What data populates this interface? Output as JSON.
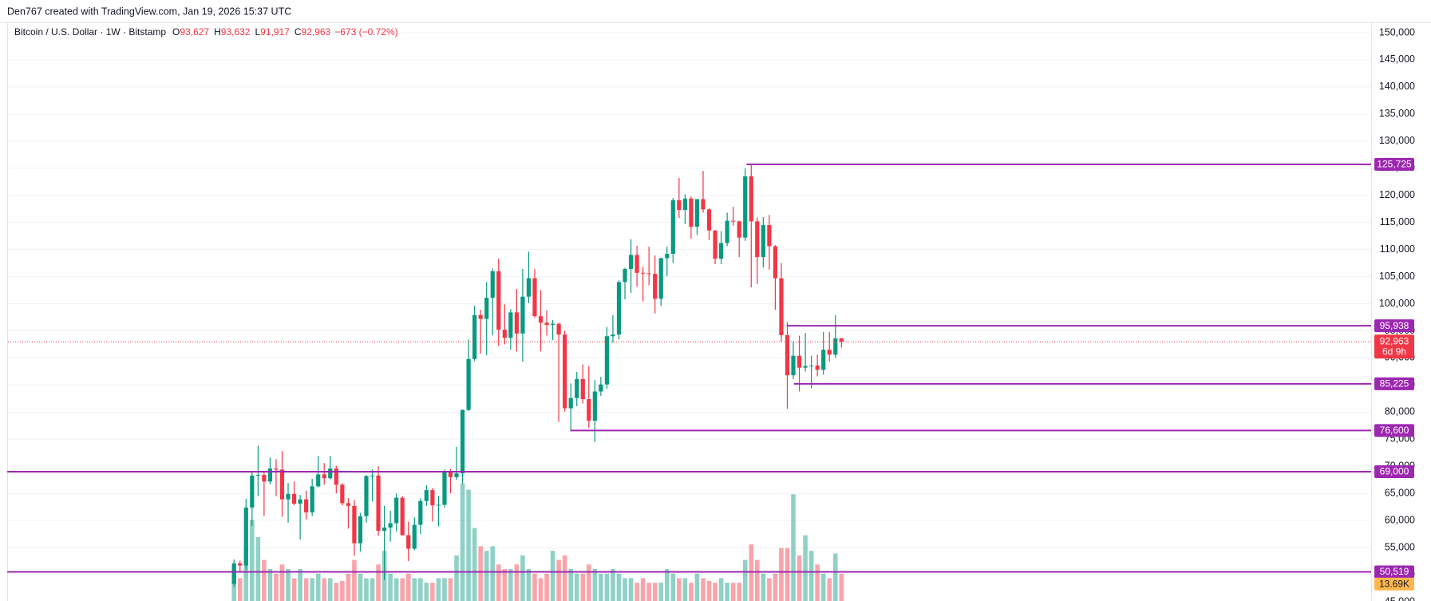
{
  "header": "Den767 created with TradingView.com, Jan 19, 2026 15:37 UTC",
  "chart_data": {
    "type": "candlestick",
    "symbol": "Bitcoin / U.S. Dollar · 1W · Bitstamp",
    "ohlc_legend": [
      {
        "key": "O",
        "value": "93,627"
      },
      {
        "key": "H",
        "value": "93,632"
      },
      {
        "key": "L",
        "value": "91,917"
      },
      {
        "key": "C",
        "value": "92,963"
      }
    ],
    "change": "−673 (−0.72%)",
    "up_color": "#089981",
    "down_color": "#f23645",
    "level_color": "#9c27b0",
    "ylim": [
      45000,
      150000
    ],
    "yticks": [
      {
        "value": 150000,
        "label": "150,000"
      },
      {
        "value": 145000,
        "label": "145,000"
      },
      {
        "value": 140000,
        "label": "140,000"
      },
      {
        "value": 135000,
        "label": "135,000"
      },
      {
        "value": 130000,
        "label": "130,000"
      },
      {
        "value": 125000,
        "label": "125,000"
      },
      {
        "value": 120000,
        "label": "120,000"
      },
      {
        "value": 115000,
        "label": "115,000"
      },
      {
        "value": 110000,
        "label": "110,000"
      },
      {
        "value": 105000,
        "label": "105,000"
      },
      {
        "value": 100000,
        "label": "100,000"
      },
      {
        "value": 95000,
        "label": "95,000"
      },
      {
        "value": 90000,
        "label": "90,000"
      },
      {
        "value": 85000,
        "label": "85,000"
      },
      {
        "value": 80000,
        "label": "80,000"
      },
      {
        "value": 75000,
        "label": "75,000"
      },
      {
        "value": 70000,
        "label": "70,000"
      },
      {
        "value": 65000,
        "label": "65,000"
      },
      {
        "value": 60000,
        "label": "60,000"
      },
      {
        "value": 55000,
        "label": "55,000"
      },
      {
        "value": 50000,
        "label": "50,000"
      },
      {
        "value": 45000,
        "label": "45,000"
      }
    ],
    "grid": true,
    "levels": [
      {
        "value": 125725,
        "label": "125,725"
      },
      {
        "value": 95938,
        "label": "95,938"
      },
      {
        "value": 85225,
        "label": "85,225"
      },
      {
        "value": 76600,
        "label": "76,600"
      },
      {
        "value": 69000,
        "label": "69,000"
      },
      {
        "value": 50519,
        "label": "50,519"
      }
    ],
    "last_price": {
      "value": 92963,
      "label": "92,963",
      "countdown": "6d 9h"
    },
    "volume_ma": {
      "value": 13690,
      "label": "13.69K"
    },
    "candles": [
      {
        "o": 48300,
        "h": 52800,
        "l": 47700,
        "c": 52100
      },
      {
        "o": 52100,
        "h": 52600,
        "l": 50600,
        "c": 51700
      },
      {
        "o": 51700,
        "h": 64000,
        "l": 50900,
        "c": 62400
      },
      {
        "o": 62400,
        "h": 69000,
        "l": 59000,
        "c": 68300
      },
      {
        "o": 68300,
        "h": 73800,
        "l": 64500,
        "c": 68400
      },
      {
        "o": 68400,
        "h": 68900,
        "l": 60800,
        "c": 67200
      },
      {
        "o": 67200,
        "h": 71600,
        "l": 66700,
        "c": 69600
      },
      {
        "o": 69600,
        "h": 71300,
        "l": 64500,
        "c": 69400
      },
      {
        "o": 69400,
        "h": 72800,
        "l": 60700,
        "c": 63900
      },
      {
        "o": 63900,
        "h": 66900,
        "l": 59600,
        "c": 64900
      },
      {
        "o": 64900,
        "h": 67200,
        "l": 62800,
        "c": 63100
      },
      {
        "o": 63100,
        "h": 64700,
        "l": 56500,
        "c": 63900
      },
      {
        "o": 63900,
        "h": 65500,
        "l": 60200,
        "c": 61500
      },
      {
        "o": 61500,
        "h": 67700,
        "l": 60800,
        "c": 66300
      },
      {
        "o": 66300,
        "h": 71900,
        "l": 66100,
        "c": 68500
      },
      {
        "o": 68500,
        "h": 70600,
        "l": 66600,
        "c": 67800
      },
      {
        "o": 67800,
        "h": 71900,
        "l": 67600,
        "c": 69600
      },
      {
        "o": 69600,
        "h": 70100,
        "l": 65000,
        "c": 66600
      },
      {
        "o": 66600,
        "h": 66900,
        "l": 62800,
        "c": 63200
      },
      {
        "o": 63200,
        "h": 64100,
        "l": 58500,
        "c": 62700
      },
      {
        "o": 62700,
        "h": 63800,
        "l": 53500,
        "c": 55800
      },
      {
        "o": 55800,
        "h": 61400,
        "l": 54300,
        "c": 60800
      },
      {
        "o": 60800,
        "h": 68400,
        "l": 59600,
        "c": 68200
      },
      {
        "o": 68200,
        "h": 69400,
        "l": 63500,
        "c": 68300
      },
      {
        "o": 68300,
        "h": 70000,
        "l": 57200,
        "c": 58100
      },
      {
        "o": 58100,
        "h": 62700,
        "l": 49000,
        "c": 58700
      },
      {
        "o": 58700,
        "h": 61800,
        "l": 56100,
        "c": 59500
      },
      {
        "o": 59500,
        "h": 65000,
        "l": 58000,
        "c": 64200
      },
      {
        "o": 64200,
        "h": 64500,
        "l": 57200,
        "c": 57300
      },
      {
        "o": 57300,
        "h": 59800,
        "l": 52500,
        "c": 54800
      },
      {
        "o": 54800,
        "h": 60600,
        "l": 54500,
        "c": 59200
      },
      {
        "o": 59200,
        "h": 64100,
        "l": 57500,
        "c": 63600
      },
      {
        "o": 63600,
        "h": 66500,
        "l": 62700,
        "c": 65600
      },
      {
        "o": 65600,
        "h": 66000,
        "l": 59800,
        "c": 62800
      },
      {
        "o": 62800,
        "h": 64500,
        "l": 58900,
        "c": 62900
      },
      {
        "o": 62900,
        "h": 69400,
        "l": 62400,
        "c": 69000
      },
      {
        "o": 69000,
        "h": 69500,
        "l": 65000,
        "c": 68000
      },
      {
        "o": 68000,
        "h": 73600,
        "l": 67500,
        "c": 68700
      },
      {
        "o": 68700,
        "h": 80500,
        "l": 66800,
        "c": 80400
      },
      {
        "o": 80400,
        "h": 93400,
        "l": 80200,
        "c": 89800
      },
      {
        "o": 89800,
        "h": 99600,
        "l": 89400,
        "c": 97900
      },
      {
        "o": 97900,
        "h": 98900,
        "l": 90800,
        "c": 97200
      },
      {
        "o": 97200,
        "h": 104000,
        "l": 90500,
        "c": 101100
      },
      {
        "o": 101100,
        "h": 106500,
        "l": 94200,
        "c": 106000
      },
      {
        "o": 106000,
        "h": 108300,
        "l": 92200,
        "c": 95200
      },
      {
        "o": 95200,
        "h": 99900,
        "l": 92500,
        "c": 93700
      },
      {
        "o": 93700,
        "h": 99000,
        "l": 91500,
        "c": 98400
      },
      {
        "o": 98400,
        "h": 102700,
        "l": 91200,
        "c": 94500
      },
      {
        "o": 94500,
        "h": 106400,
        "l": 89300,
        "c": 101300
      },
      {
        "o": 101300,
        "h": 109600,
        "l": 100100,
        "c": 104700
      },
      {
        "o": 104700,
        "h": 106400,
        "l": 97400,
        "c": 97700
      },
      {
        "o": 97700,
        "h": 102500,
        "l": 91200,
        "c": 96500
      },
      {
        "o": 96500,
        "h": 98800,
        "l": 94100,
        "c": 96100
      },
      {
        "o": 96100,
        "h": 97000,
        "l": 93300,
        "c": 96300
      },
      {
        "o": 96300,
        "h": 96500,
        "l": 78200,
        "c": 94300
      },
      {
        "o": 94300,
        "h": 95000,
        "l": 80100,
        "c": 80700
      },
      {
        "o": 80700,
        "h": 85300,
        "l": 76600,
        "c": 82600
      },
      {
        "o": 82600,
        "h": 87400,
        "l": 81100,
        "c": 86100
      },
      {
        "o": 86100,
        "h": 88800,
        "l": 81600,
        "c": 82400
      },
      {
        "o": 82400,
        "h": 88500,
        "l": 77100,
        "c": 78400
      },
      {
        "o": 78400,
        "h": 85900,
        "l": 74500,
        "c": 83800
      },
      {
        "o": 83800,
        "h": 86500,
        "l": 83000,
        "c": 85100
      },
      {
        "o": 85100,
        "h": 95700,
        "l": 84300,
        "c": 94000
      },
      {
        "o": 94000,
        "h": 97900,
        "l": 92800,
        "c": 94300
      },
      {
        "o": 94300,
        "h": 104300,
        "l": 93400,
        "c": 104000
      },
      {
        "o": 104000,
        "h": 106600,
        "l": 100800,
        "c": 106400
      },
      {
        "o": 106400,
        "h": 111900,
        "l": 102000,
        "c": 109000
      },
      {
        "o": 109000,
        "h": 110700,
        "l": 103100,
        "c": 105700
      },
      {
        "o": 105700,
        "h": 106800,
        "l": 100400,
        "c": 105600
      },
      {
        "o": 105600,
        "h": 110500,
        "l": 103400,
        "c": 105500
      },
      {
        "o": 105500,
        "h": 108900,
        "l": 98200,
        "c": 100900
      },
      {
        "o": 100900,
        "h": 108500,
        "l": 99600,
        "c": 108400
      },
      {
        "o": 108400,
        "h": 110500,
        "l": 105100,
        "c": 109200
      },
      {
        "o": 109200,
        "h": 119500,
        "l": 107500,
        "c": 119100
      },
      {
        "o": 119100,
        "h": 123200,
        "l": 115800,
        "c": 117300
      },
      {
        "o": 117300,
        "h": 120200,
        "l": 114700,
        "c": 119400
      },
      {
        "o": 119400,
        "h": 119800,
        "l": 112000,
        "c": 114200
      },
      {
        "o": 114200,
        "h": 119300,
        "l": 112700,
        "c": 119300
      },
      {
        "o": 119300,
        "h": 124500,
        "l": 116800,
        "c": 117400
      },
      {
        "o": 117400,
        "h": 117600,
        "l": 111700,
        "c": 113500
      },
      {
        "o": 113500,
        "h": 113600,
        "l": 107300,
        "c": 108300
      },
      {
        "o": 108300,
        "h": 113400,
        "l": 107300,
        "c": 111200
      },
      {
        "o": 111200,
        "h": 116800,
        "l": 110600,
        "c": 115300
      },
      {
        "o": 115300,
        "h": 117900,
        "l": 114400,
        "c": 115200
      },
      {
        "o": 115200,
        "h": 115300,
        "l": 108600,
        "c": 112200
      },
      {
        "o": 112200,
        "h": 125000,
        "l": 111600,
        "c": 123500
      },
      {
        "o": 123500,
        "h": 125725,
        "l": 103000,
        "c": 115200
      },
      {
        "o": 115200,
        "h": 115900,
        "l": 103600,
        "c": 108600
      },
      {
        "o": 108600,
        "h": 116000,
        "l": 106700,
        "c": 114500
      },
      {
        "o": 114500,
        "h": 116400,
        "l": 106300,
        "c": 110600
      },
      {
        "o": 110600,
        "h": 110800,
        "l": 98900,
        "c": 104700
      },
      {
        "o": 104700,
        "h": 107500,
        "l": 93000,
        "c": 94200
      },
      {
        "o": 94200,
        "h": 96600,
        "l": 80600,
        "c": 86800
      },
      {
        "o": 86800,
        "h": 93100,
        "l": 86100,
        "c": 90400
      },
      {
        "o": 90400,
        "h": 94100,
        "l": 83800,
        "c": 88200
      },
      {
        "o": 88200,
        "h": 94600,
        "l": 87500,
        "c": 88500
      },
      {
        "o": 88500,
        "h": 90400,
        "l": 84400,
        "c": 88600
      },
      {
        "o": 88600,
        "h": 90600,
        "l": 86600,
        "c": 87800
      },
      {
        "o": 87800,
        "h": 94800,
        "l": 86900,
        "c": 91500
      },
      {
        "o": 91500,
        "h": 94800,
        "l": 89300,
        "c": 90600
      },
      {
        "o": 90600,
        "h": 97900,
        "l": 90000,
        "c": 93600
      },
      {
        "o": 93627,
        "h": 93632,
        "l": 91917,
        "c": 92963
      }
    ],
    "volume": [
      15000,
      12500,
      30000,
      44500,
      35000,
      22500,
      17500,
      15000,
      20000,
      17500,
      12500,
      17500,
      12500,
      12500,
      15000,
      12500,
      12500,
      10000,
      11000,
      15000,
      22500,
      15000,
      12500,
      12500,
      20000,
      27500,
      15000,
      12500,
      12500,
      15000,
      12500,
      12500,
      10000,
      10000,
      12500,
      12500,
      12500,
      25000,
      64500,
      61000,
      40000,
      30000,
      27500,
      30000,
      20000,
      17500,
      17500,
      20000,
      25000,
      17500,
      15000,
      12500,
      15000,
      27500,
      22500,
      25000,
      17500,
      15000,
      15000,
      20000,
      17500,
      15000,
      15000,
      17500,
      15000,
      12500,
      12500,
      10000,
      12500,
      10000,
      10000,
      10000,
      17500,
      15000,
      12500,
      12500,
      10000,
      15000,
      12500,
      11000,
      10000,
      12500,
      10000,
      10000,
      10000,
      22500,
      31000,
      22500,
      15000,
      12500,
      15000,
      29000,
      29000,
      58500,
      25000,
      36000,
      27500,
      20000,
      15000,
      12500,
      26000,
      15000
    ]
  }
}
